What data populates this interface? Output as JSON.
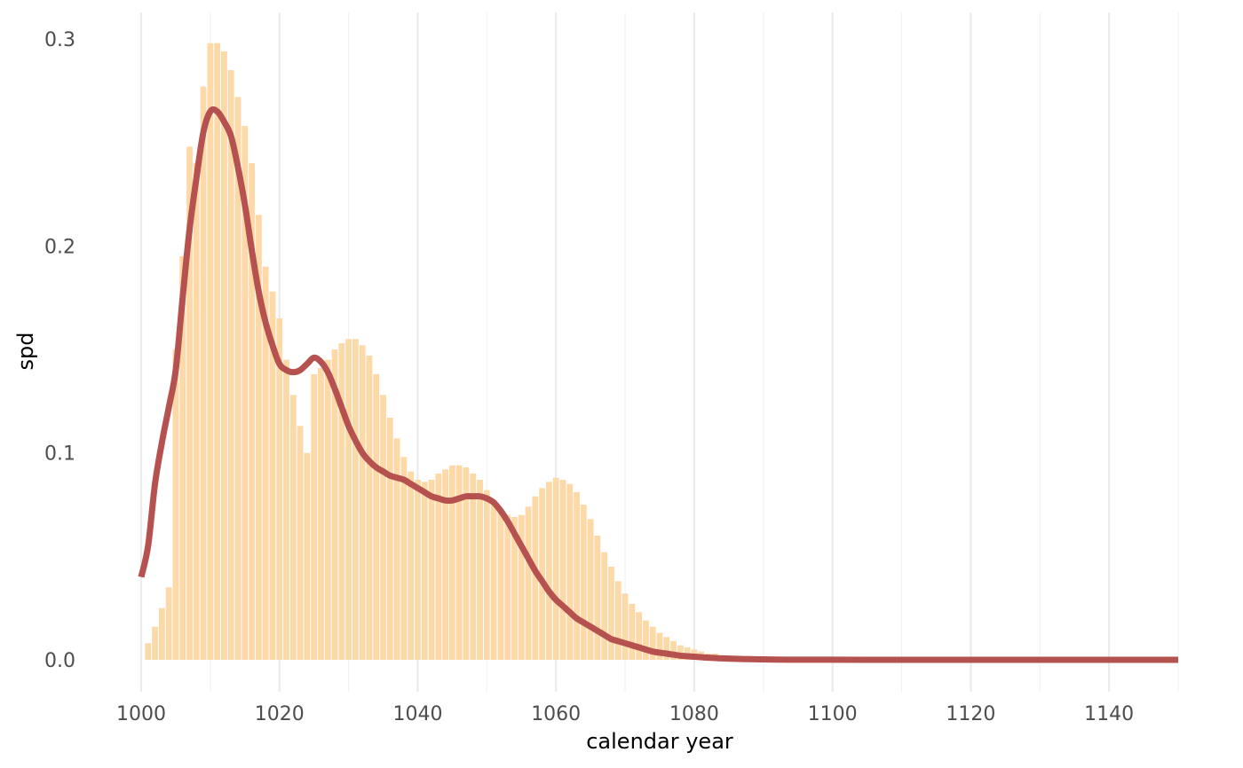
{
  "chart_data": {
    "type": "bar",
    "title": "",
    "xlabel": "calendar year",
    "ylabel": "spd",
    "xlim": [
      1000,
      1150
    ],
    "ylim": [
      0,
      0.3
    ],
    "x_ticks": [
      1000,
      1020,
      1040,
      1060,
      1080,
      1100,
      1120,
      1140
    ],
    "x_tick_labels": [
      "1000",
      "1020",
      "1040",
      "1060",
      "1080",
      "1100",
      "1120",
      "1140"
    ],
    "y_ticks": [
      0,
      0.1,
      0.2,
      0.3
    ],
    "y_tick_labels": [
      "0.0",
      "0.1",
      "0.2",
      "0.3"
    ],
    "grid": "x-major-and-minor",
    "bar_color": "#fdd9a8",
    "line_color": "#b5514f",
    "bars": {
      "x": [
        1001,
        1002,
        1003,
        1004,
        1005,
        1006,
        1007,
        1008,
        1009,
        1010,
        1011,
        1012,
        1013,
        1014,
        1015,
        1016,
        1017,
        1018,
        1019,
        1020,
        1021,
        1022,
        1023,
        1024,
        1025,
        1026,
        1027,
        1028,
        1029,
        1030,
        1031,
        1032,
        1033,
        1034,
        1035,
        1036,
        1037,
        1038,
        1039,
        1040,
        1041,
        1042,
        1043,
        1044,
        1045,
        1046,
        1047,
        1048,
        1049,
        1050,
        1051,
        1052,
        1053,
        1054,
        1055,
        1056,
        1057,
        1058,
        1059,
        1060,
        1061,
        1062,
        1063,
        1064,
        1065,
        1066,
        1067,
        1068,
        1069,
        1070,
        1071,
        1072,
        1073,
        1074,
        1075,
        1076,
        1077,
        1078,
        1079,
        1080,
        1081,
        1082,
        1083,
        1084,
        1085,
        1086,
        1087,
        1088,
        1089,
        1090,
        1091,
        1092,
        1093,
        1094,
        1095,
        1096,
        1097,
        1098,
        1099,
        1100
      ],
      "values": [
        0.008,
        0.016,
        0.025,
        0.035,
        0.15,
        0.195,
        0.248,
        0.24,
        0.277,
        0.298,
        0.298,
        0.294,
        0.285,
        0.272,
        0.258,
        0.24,
        0.215,
        0.19,
        0.178,
        0.165,
        0.145,
        0.128,
        0.113,
        0.1,
        0.138,
        0.141,
        0.145,
        0.15,
        0.153,
        0.155,
        0.155,
        0.152,
        0.147,
        0.138,
        0.128,
        0.117,
        0.107,
        0.098,
        0.091,
        0.087,
        0.086,
        0.087,
        0.09,
        0.092,
        0.094,
        0.094,
        0.093,
        0.09,
        0.087,
        0.082,
        0.077,
        0.073,
        0.07,
        0.069,
        0.07,
        0.074,
        0.079,
        0.083,
        0.086,
        0.088,
        0.087,
        0.085,
        0.081,
        0.075,
        0.068,
        0.06,
        0.052,
        0.045,
        0.038,
        0.032,
        0.027,
        0.023,
        0.019,
        0.016,
        0.013,
        0.011,
        0.009,
        0.007,
        0.006,
        0.005,
        0.004,
        0.003,
        0.003,
        0.002,
        0.002,
        0.001,
        0.001,
        0.001,
        0.001,
        0.0007,
        0.0005,
        0.0004,
        0.0003,
        0.0002,
        0.0002,
        0.0001,
        0.0001,
        0.0001,
        0.0001,
        0.0001
      ]
    },
    "line": {
      "x": [
        1000,
        1001,
        1002,
        1003,
        1004,
        1005,
        1006,
        1007,
        1008,
        1009,
        1010,
        1011,
        1012,
        1013,
        1014,
        1015,
        1016,
        1017,
        1018,
        1019,
        1020,
        1021,
        1022,
        1023,
        1024,
        1025,
        1026,
        1027,
        1028,
        1029,
        1030,
        1031,
        1032,
        1033,
        1034,
        1035,
        1036,
        1037,
        1038,
        1039,
        1040,
        1041,
        1042,
        1043,
        1044,
        1045,
        1046,
        1047,
        1048,
        1049,
        1050,
        1051,
        1052,
        1053,
        1054,
        1055,
        1056,
        1057,
        1058,
        1059,
        1060,
        1061,
        1062,
        1063,
        1064,
        1065,
        1066,
        1067,
        1068,
        1069,
        1070,
        1072,
        1074,
        1076,
        1078,
        1080,
        1082,
        1084,
        1086,
        1088,
        1090,
        1092,
        1095,
        1100,
        1105,
        1110,
        1120,
        1130,
        1140,
        1150
      ],
      "values": [
        0.04,
        0.055,
        0.085,
        0.105,
        0.122,
        0.14,
        0.175,
        0.208,
        0.233,
        0.255,
        0.265,
        0.265,
        0.26,
        0.253,
        0.238,
        0.22,
        0.198,
        0.178,
        0.163,
        0.152,
        0.143,
        0.14,
        0.139,
        0.14,
        0.143,
        0.146,
        0.144,
        0.139,
        0.131,
        0.122,
        0.113,
        0.106,
        0.1,
        0.096,
        0.093,
        0.091,
        0.089,
        0.088,
        0.087,
        0.085,
        0.083,
        0.081,
        0.079,
        0.078,
        0.077,
        0.077,
        0.078,
        0.079,
        0.079,
        0.079,
        0.078,
        0.076,
        0.072,
        0.067,
        0.061,
        0.055,
        0.049,
        0.043,
        0.038,
        0.033,
        0.029,
        0.026,
        0.023,
        0.02,
        0.018,
        0.016,
        0.014,
        0.012,
        0.01,
        0.009,
        0.008,
        0.006,
        0.004,
        0.003,
        0.002,
        0.0015,
        0.001,
        0.0007,
        0.0005,
        0.0003,
        0.0002,
        0.0001,
        5e-05,
        3e-05,
        1e-05,
        0,
        0,
        0,
        0,
        0
      ]
    }
  }
}
